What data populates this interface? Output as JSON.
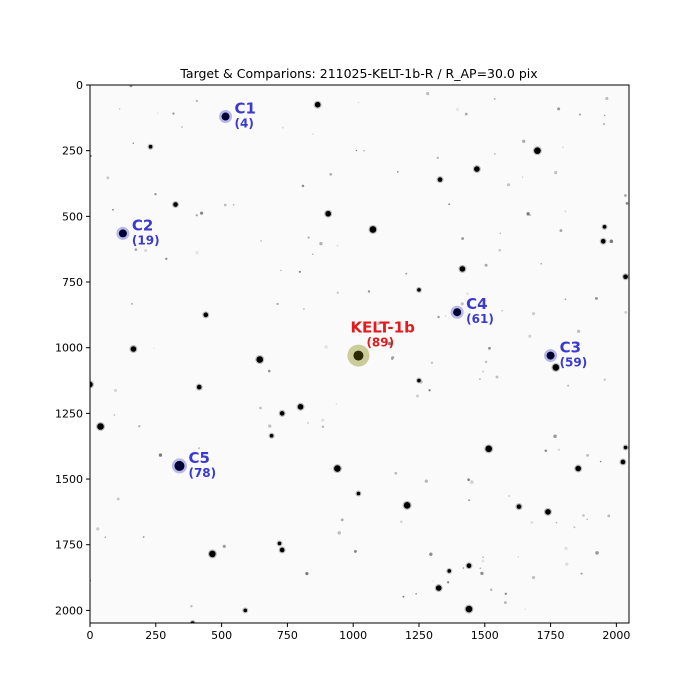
{
  "chart_data": {
    "type": "scatter",
    "title": "Target & Comparions: 211025-KELT-1b-R / R_AP=30.0 pix",
    "xlim": [
      0,
      2048
    ],
    "ylim": [
      2048,
      0
    ],
    "y_inverted": true,
    "x_ticks": [
      "0",
      "250",
      "500",
      "750",
      "1000",
      "1250",
      "1500",
      "1750",
      "2000"
    ],
    "y_ticks": [
      "0",
      "250",
      "500",
      "750",
      "1000",
      "1250",
      "1500",
      "1750",
      "2000"
    ],
    "grid": false,
    "background": "grayscale star field image",
    "target": {
      "name": "KELT-1b",
      "count": "(89)",
      "x": 1020,
      "y": 1030,
      "color": "#e41a1c",
      "marker_color": "#808000"
    },
    "comparisons": [
      {
        "name": "C1",
        "count": "(4)",
        "x": 515,
        "y": 120
      },
      {
        "name": "C2",
        "count": "(19)",
        "x": 125,
        "y": 565
      },
      {
        "name": "C3",
        "count": "(59)",
        "x": 1750,
        "y": 1030
      },
      {
        "name": "C4",
        "count": "(61)",
        "x": 1395,
        "y": 865
      },
      {
        "name": "C5",
        "count": "(78)",
        "x": 340,
        "y": 1450
      }
    ],
    "comparison_color": "#3a3acf",
    "stars": [
      [
        230,
        235
      ],
      [
        325,
        455
      ],
      [
        905,
        490
      ],
      [
        1075,
        550
      ],
      [
        1250,
        780
      ],
      [
        440,
        875
      ],
      [
        165,
        1005
      ],
      [
        645,
        1045
      ],
      [
        590,
        2000
      ],
      [
        1330,
        360
      ],
      [
        1470,
        320
      ],
      [
        1700,
        250
      ],
      [
        1955,
        540
      ],
      [
        1950,
        595
      ],
      [
        1415,
        700
      ],
      [
        1770,
        1075
      ],
      [
        1250,
        1125
      ],
      [
        415,
        1150
      ],
      [
        0,
        1140
      ],
      [
        40,
        1300
      ],
      [
        690,
        1335
      ],
      [
        730,
        1250
      ],
      [
        800,
        1225
      ],
      [
        1515,
        1385
      ],
      [
        2035,
        1380
      ],
      [
        2025,
        1435
      ],
      [
        1855,
        1460
      ],
      [
        1205,
        1600
      ],
      [
        1020,
        1555
      ],
      [
        1630,
        1605
      ],
      [
        1740,
        1625
      ],
      [
        465,
        1785
      ],
      [
        720,
        1745
      ],
      [
        730,
        1770
      ],
      [
        1325,
        1915
      ],
      [
        1440,
        1995
      ],
      [
        390,
        2048
      ],
      [
        2035,
        730
      ],
      [
        865,
        75
      ],
      [
        940,
        1460
      ],
      [
        1365,
        1850
      ],
      [
        1440,
        1830
      ]
    ]
  }
}
